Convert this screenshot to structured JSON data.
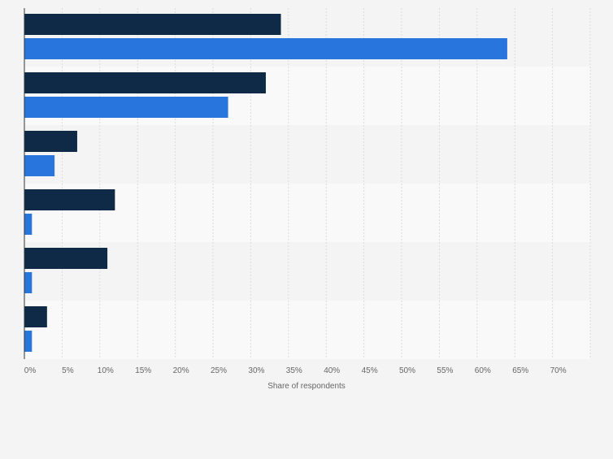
{
  "chart_data": {
    "type": "bar",
    "orientation": "horizontal",
    "xlabel": "Share of respondents",
    "xlim": [
      0,
      75
    ],
    "xticks": [
      0,
      5,
      10,
      15,
      20,
      25,
      30,
      35,
      40,
      45,
      50,
      55,
      60,
      65,
      70
    ],
    "tick_suffix": "%",
    "grid": true,
    "categories": [
      "",
      "",
      "",
      "",
      "",
      ""
    ],
    "series": [
      {
        "values": [
          34,
          32,
          7,
          12,
          11,
          3
        ],
        "color": "#0e2a47"
      },
      {
        "values": [
          64,
          27,
          4,
          1,
          1,
          1
        ],
        "color": "#2876dd"
      }
    ]
  }
}
